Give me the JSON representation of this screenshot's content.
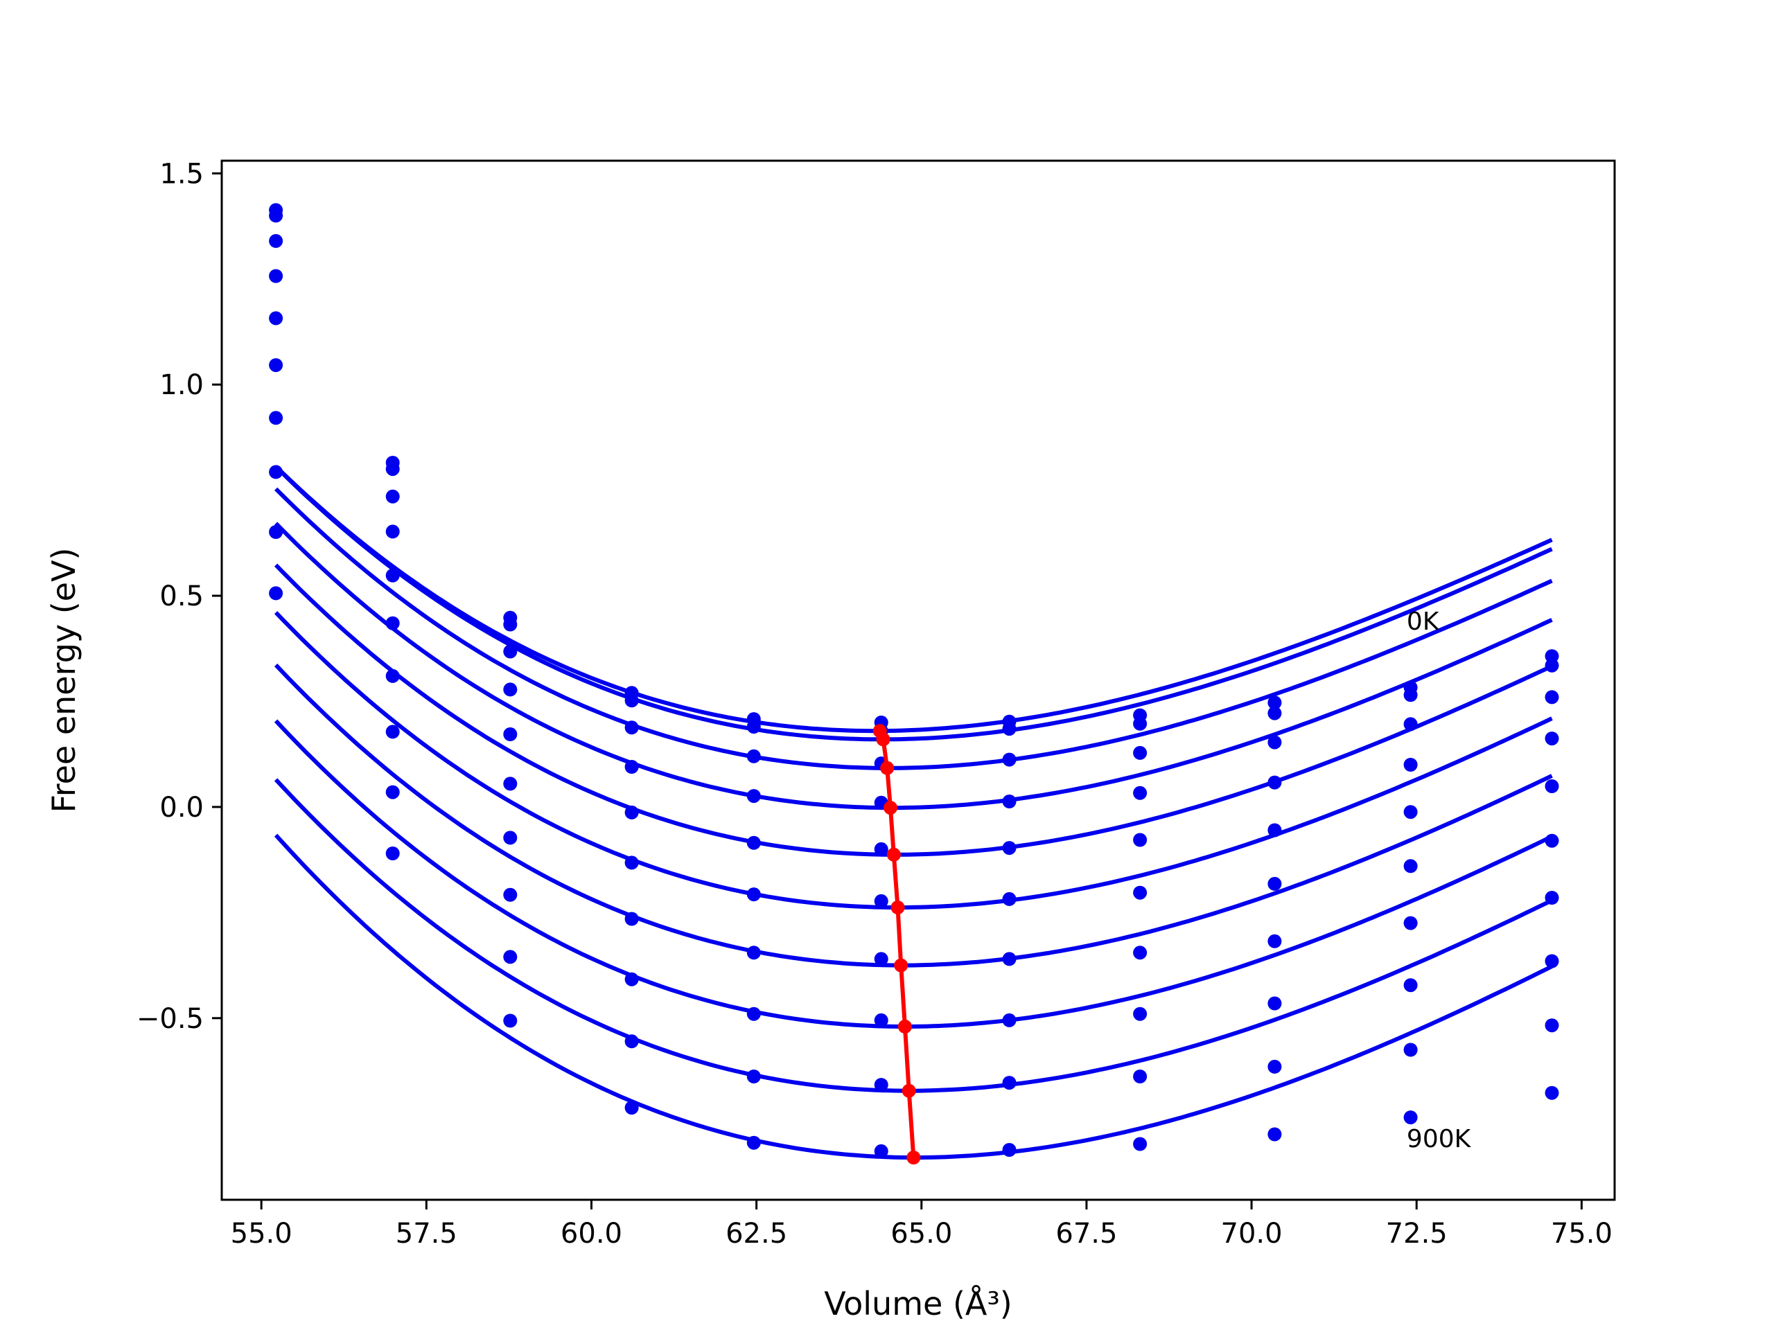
{
  "chart_data": {
    "type": "line",
    "title": "",
    "xlabel": "Volume (Å³)",
    "ylabel": "Free energy (eV)",
    "xlim": [
      54.4,
      75.5
    ],
    "ylim": [
      -0.93,
      1.53
    ],
    "xticks": [
      55.0,
      57.5,
      60.0,
      62.5,
      65.0,
      67.5,
      70.0,
      72.5,
      75.0
    ],
    "xtick_labels": [
      "55.0",
      "57.5",
      "60.0",
      "62.5",
      "65.0",
      "67.5",
      "70.0",
      "72.5",
      "75.0"
    ],
    "yticks": [
      -0.5,
      0.0,
      0.5,
      1.0,
      1.5
    ],
    "ytick_labels": [
      "−0.5",
      "0.0",
      "0.5",
      "1.0",
      "1.5"
    ],
    "grid": false,
    "legend": "none",
    "colors": {
      "curves": "#0000ee",
      "minimum_path": "#ff0000",
      "axes": "#000000"
    },
    "x_points": [
      55.22,
      56.99,
      58.77,
      60.61,
      62.46,
      64.39,
      66.33,
      68.31,
      70.35,
      72.41,
      74.55
    ],
    "series": [
      {
        "y": [
          1.413,
          0.815,
          0.448,
          0.27,
          0.208,
          0.2,
          0.202,
          0.217,
          0.247,
          0.283,
          0.357
        ],
        "fit": {
          "v0": 64.3,
          "e0": 0.18,
          "b": 0.00605,
          "c": -0.00017
        }
      },
      {
        "y": [
          1.4,
          0.8,
          0.432,
          0.252,
          0.19,
          0.18,
          0.185,
          0.197,
          0.222,
          0.265,
          0.335
        ],
        "fit": {
          "v0": 64.4,
          "e0": 0.16,
          "b": 0.0061,
          "c": -0.00017
        }
      },
      {
        "y": [
          1.34,
          0.735,
          0.368,
          0.188,
          0.12,
          0.103,
          0.112,
          0.128,
          0.153,
          0.196,
          0.26
        ],
        "fit": {
          "v0": 64.5,
          "e0": 0.092,
          "b": 0.0061,
          "c": -0.00017
        }
      },
      {
        "y": [
          1.257,
          0.652,
          0.278,
          0.095,
          0.026,
          0.01,
          0.013,
          0.033,
          0.058,
          0.1,
          0.162
        ],
        "fit": {
          "v0": 64.55,
          "e0": -0.002,
          "b": 0.00615,
          "c": -0.00017
        }
      },
      {
        "y": [
          1.157,
          0.548,
          0.172,
          -0.013,
          -0.085,
          -0.1,
          -0.097,
          -0.078,
          -0.055,
          -0.012,
          0.049
        ],
        "fit": {
          "v0": 64.6,
          "e0": -0.113,
          "b": 0.0062,
          "c": -0.00017
        }
      },
      {
        "y": [
          1.046,
          0.435,
          0.055,
          -0.132,
          -0.207,
          -0.223,
          -0.218,
          -0.203,
          -0.182,
          -0.14,
          -0.08
        ],
        "fit": {
          "v0": 64.65,
          "e0": -0.238,
          "b": 0.00625,
          "c": -0.00017
        }
      },
      {
        "y": [
          0.921,
          0.31,
          -0.073,
          -0.265,
          -0.345,
          -0.36,
          -0.36,
          -0.345,
          -0.318,
          -0.275,
          -0.215
        ],
        "fit": {
          "v0": 64.7,
          "e0": -0.375,
          "b": 0.0063,
          "c": -0.00017
        }
      },
      {
        "y": [
          0.793,
          0.178,
          -0.208,
          -0.408,
          -0.49,
          -0.505,
          -0.505,
          -0.49,
          -0.465,
          -0.422,
          -0.365
        ],
        "fit": {
          "v0": 64.75,
          "e0": -0.52,
          "b": 0.00635,
          "c": -0.00017
        }
      },
      {
        "y": [
          0.651,
          0.035,
          -0.355,
          -0.555,
          -0.638,
          -0.658,
          -0.653,
          -0.638,
          -0.615,
          -0.575,
          -0.517
        ],
        "fit": {
          "v0": 64.8,
          "e0": -0.672,
          "b": 0.0064,
          "c": -0.00017
        }
      },
      {
        "y": [
          0.506,
          -0.11,
          -0.506,
          -0.712,
          -0.795,
          -0.815,
          -0.812,
          -0.798,
          -0.775,
          -0.735,
          -0.677
        ],
        "fit": {
          "v0": 64.9,
          "e0": -0.83,
          "b": 0.0065,
          "c": -0.00017
        }
      }
    ],
    "minimum_path": {
      "x": [
        64.37,
        64.42,
        64.48,
        64.53,
        64.58,
        64.64,
        64.69,
        64.75,
        64.81,
        64.88
      ],
      "y": [
        0.18,
        0.16,
        0.092,
        -0.002,
        -0.113,
        -0.238,
        -0.375,
        -0.52,
        -0.672,
        -0.83
      ]
    },
    "annotations": [
      {
        "text": "0K",
        "x": 72.35,
        "y": 0.42
      },
      {
        "text": "900K",
        "x": 72.35,
        "y": -0.805
      }
    ]
  }
}
